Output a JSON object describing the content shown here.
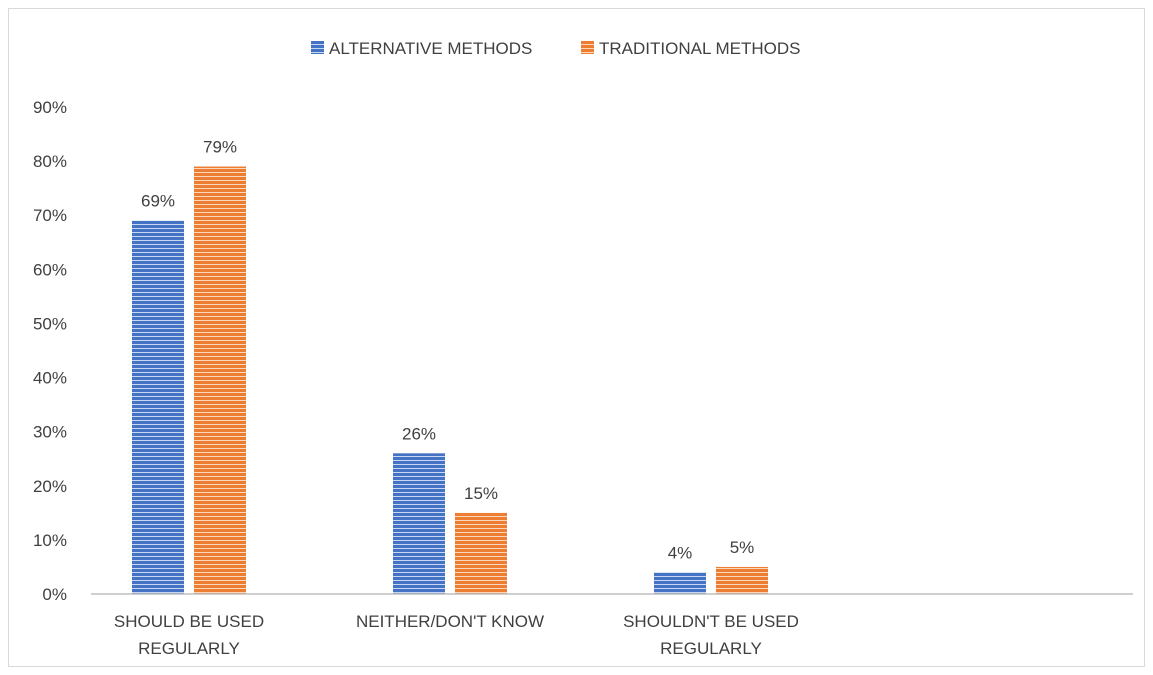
{
  "chart_data": {
    "type": "bar",
    "title": "",
    "xlabel": "",
    "ylabel": "",
    "categories": [
      [
        "SHOULD BE USED",
        "REGULARLY"
      ],
      [
        "NEITHER/DON'T KNOW"
      ],
      [
        "SHOULDN'T BE USED",
        "REGULARLY"
      ]
    ],
    "series": [
      {
        "name": "ALTERNATIVE METHODS",
        "values": [
          69,
          26,
          4
        ],
        "color": "#4472C4",
        "labels": [
          "69%",
          "26%",
          "4%"
        ]
      },
      {
        "name": "TRADITIONAL METHODS",
        "values": [
          79,
          15,
          5
        ],
        "color": "#ED7D31",
        "labels": [
          "79%",
          "15%",
          "5%"
        ]
      }
    ],
    "ylim": [
      0,
      90
    ],
    "yticks": [
      "0%",
      "10%",
      "20%",
      "30%",
      "40%",
      "50%",
      "60%",
      "70%",
      "80%",
      "90%"
    ],
    "gridlines": false,
    "legend_position": "top-center",
    "bar_pattern": "horizontal stripes"
  }
}
